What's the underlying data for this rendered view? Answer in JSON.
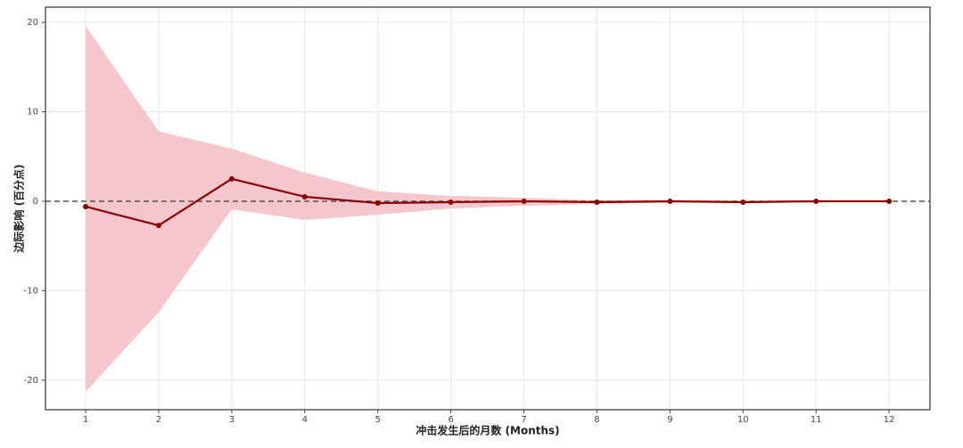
{
  "chart_data": {
    "type": "line-band",
    "x_label": "冲击发生后的月数 (Months)",
    "y_label": "边际影响 (百分点)",
    "x": [
      1,
      2,
      3,
      4,
      5,
      6,
      7,
      8,
      9,
      10,
      11,
      12
    ],
    "values": [
      -0.6,
      -2.7,
      2.5,
      0.5,
      -0.2,
      -0.1,
      0,
      -0.1,
      0,
      -0.1,
      0,
      0
    ],
    "upper": [
      19.6,
      7.8,
      5.9,
      3.2,
      1.1,
      0.6,
      0.4,
      0.1,
      0.1,
      0.05,
      0.02,
      0
    ],
    "lower": [
      -21.3,
      -12.4,
      -0.9,
      -2.1,
      -1.5,
      -0.8,
      -0.5,
      -0.3,
      -0.15,
      -0.1,
      -0.05,
      0
    ],
    "color": "#8b0000",
    "band_color": "#f4c0c6",
    "hline": 0,
    "xlim": [
      0.45,
      12.56
    ],
    "ylim": [
      -23.3,
      21.7
    ],
    "xticks": [
      1,
      2,
      3,
      4,
      5,
      6,
      7,
      8,
      9,
      10,
      11,
      12
    ],
    "yticks": [
      -20,
      -10,
      0,
      10,
      20
    ],
    "grid": true
  }
}
